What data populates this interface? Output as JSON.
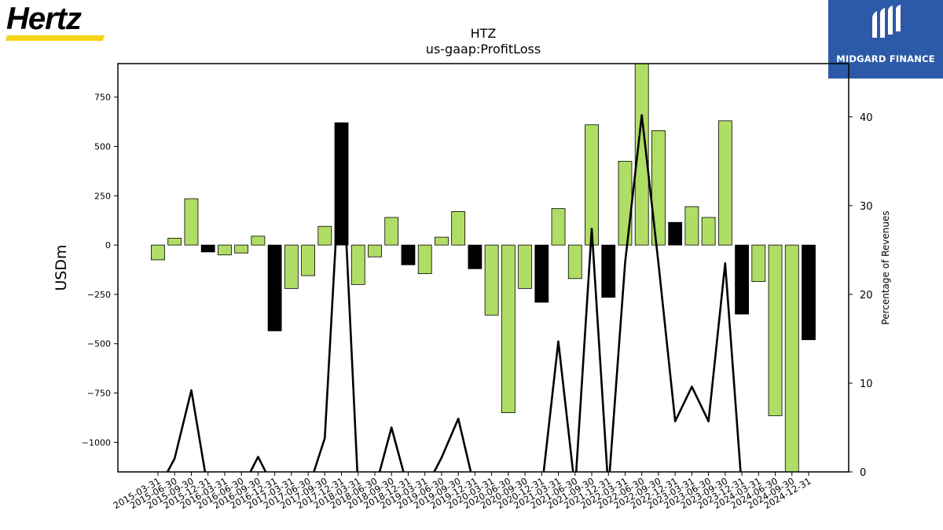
{
  "logos": {
    "left_text": "Hertz",
    "right_text": "MIDGARD FINANCE",
    "accent_yellow": "#f7d417",
    "right_bg": "#2d5aa8"
  },
  "chart_data": {
    "type": "bar",
    "title": "HTZ",
    "subtitle": "us-gaap:ProfitLoss",
    "ylabel": "USDm",
    "y2label": "Percentage of Revenues",
    "ylim": [
      -1150,
      920
    ],
    "y2lim": [
      0,
      46
    ],
    "yticks": [
      -1000,
      -750,
      -500,
      -250,
      0,
      250,
      500,
      750
    ],
    "y2ticks": [
      0,
      10,
      20,
      30,
      40
    ],
    "colors": {
      "positive_change": "#b0dd65",
      "negative_change": "#000000",
      "line": "#000000"
    },
    "categories": [
      "2015-03-31",
      "2015-06-30",
      "2015-09-30",
      "2015-12-31",
      "2016-03-31",
      "2016-06-30",
      "2016-09-30",
      "2016-12-31",
      "2017-03-31",
      "2017-06-30",
      "2017-09-30",
      "2017-12-31",
      "2018-03-31",
      "2018-06-30",
      "2018-09-30",
      "2018-12-31",
      "2019-03-31",
      "2019-06-30",
      "2019-09-30",
      "2019-12-31",
      "2020-03-31",
      "2020-06-30",
      "2020-09-30",
      "2020-12-31",
      "2021-03-31",
      "2021-06-30",
      "2021-09-30",
      "2021-12-31",
      "2022-03-31",
      "2022-06-30",
      "2022-09-30",
      "2022-12-31",
      "2023-03-31",
      "2023-06-30",
      "2023-09-30",
      "2023-12-31",
      "2024-03-31",
      "2024-06-30",
      "2024-09-30",
      "2024-12-31"
    ],
    "values": [
      -75,
      35,
      235,
      -35,
      -50,
      -40,
      45,
      -435,
      -220,
      -155,
      95,
      620,
      -200,
      -60,
      140,
      -100,
      -145,
      40,
      170,
      -120,
      -355,
      -850,
      -220,
      -290,
      185,
      -170,
      610,
      -265,
      425,
      1000,
      580,
      115,
      195,
      140,
      630,
      -350,
      -185,
      -865,
      -1200,
      -480
    ],
    "bar_colors": [
      "green",
      "green",
      "green",
      "black",
      "green",
      "green",
      "green",
      "black",
      "green",
      "green",
      "green",
      "black",
      "green",
      "green",
      "green",
      "black",
      "green",
      "green",
      "green",
      "black",
      "green",
      "green",
      "green",
      "black",
      "green",
      "green",
      "green",
      "black",
      "green",
      "green",
      "green",
      "black",
      "green",
      "green",
      "green",
      "black",
      "green",
      "green",
      "green",
      "black"
    ],
    "line_values": [
      -2,
      1.5,
      9.2,
      -2,
      -2,
      -2,
      1.7,
      -2,
      -2,
      -2,
      3.8,
      37.5,
      -2,
      -2,
      5,
      -2,
      -2,
      1.6,
      6,
      -2,
      -2,
      -2,
      -2,
      -2,
      14.7,
      -2,
      27.4,
      -2,
      23.6,
      40.2,
      23.5,
      5.7,
      9.6,
      5.7,
      23.5,
      -2,
      -2,
      -2,
      -2,
      -2
    ]
  }
}
